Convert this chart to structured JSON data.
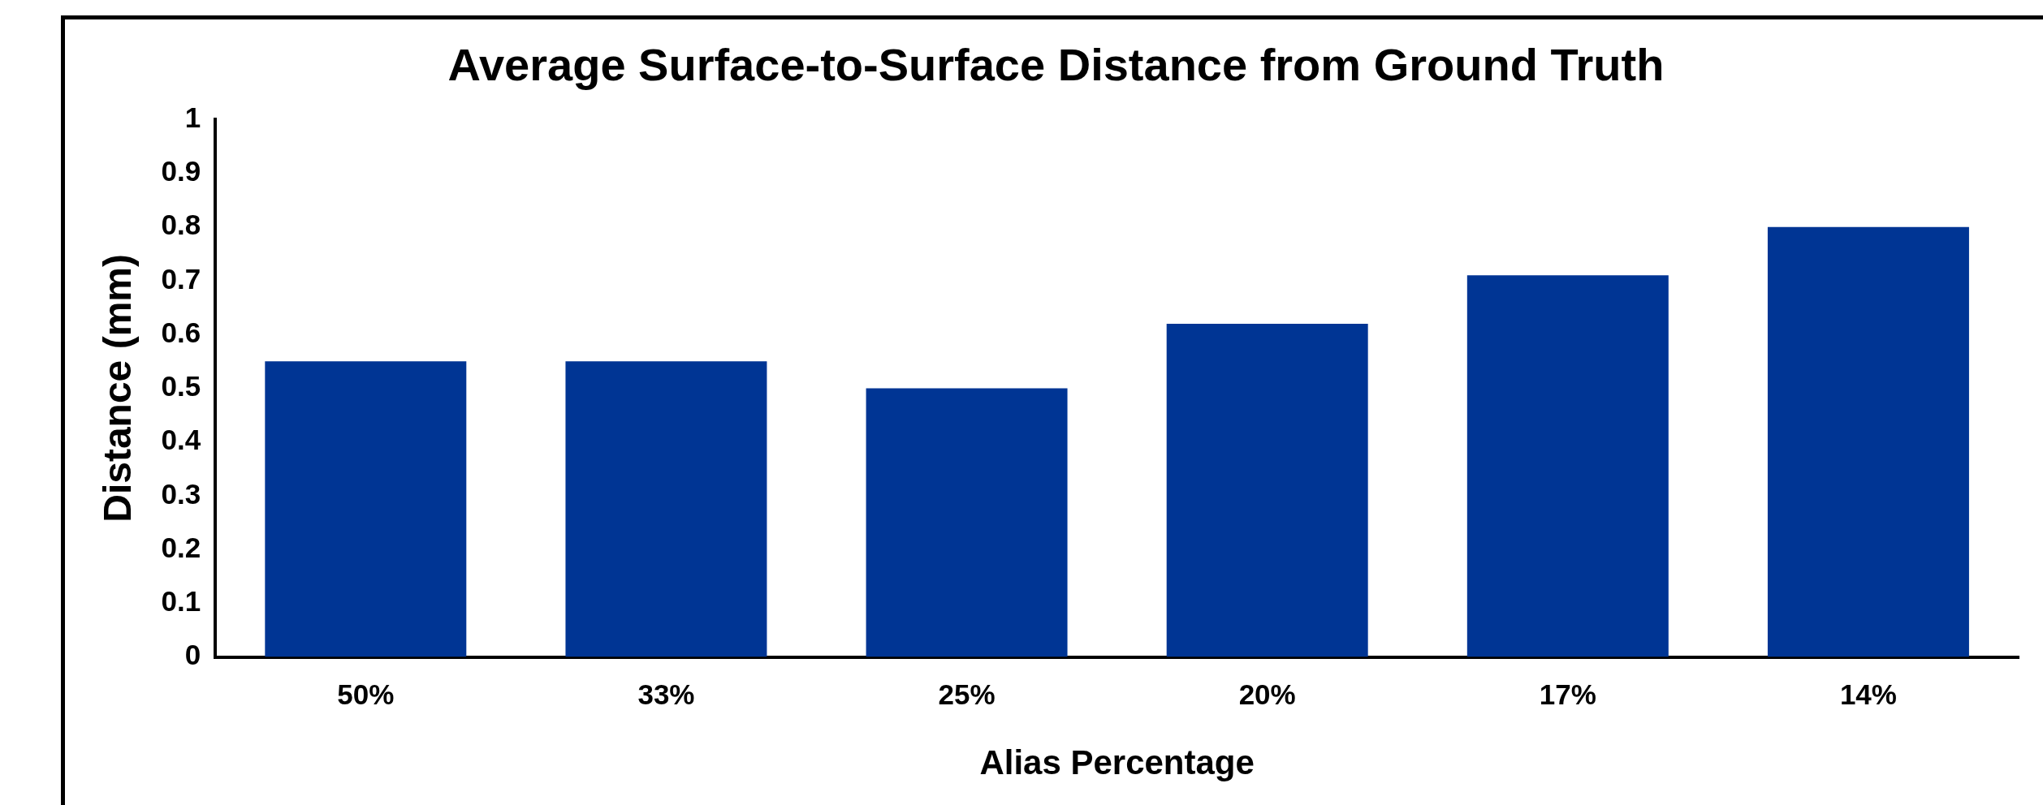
{
  "chart_data": {
    "type": "bar",
    "title": "Average Surface-to-Surface Distance from Ground Truth",
    "xlabel": "Alias Percentage",
    "ylabel": "Distance (mm)",
    "categories": [
      "50%",
      "33%",
      "25%",
      "20%",
      "17%",
      "14%"
    ],
    "values": [
      0.55,
      0.55,
      0.5,
      0.62,
      0.71,
      0.8
    ],
    "color": "#003594",
    "ylim": [
      0,
      1
    ],
    "yticks": [
      0,
      0.1,
      0.2,
      0.3,
      0.4,
      0.5,
      0.6,
      0.7,
      0.8,
      0.9,
      1
    ],
    "grid": false,
    "legend": false
  }
}
